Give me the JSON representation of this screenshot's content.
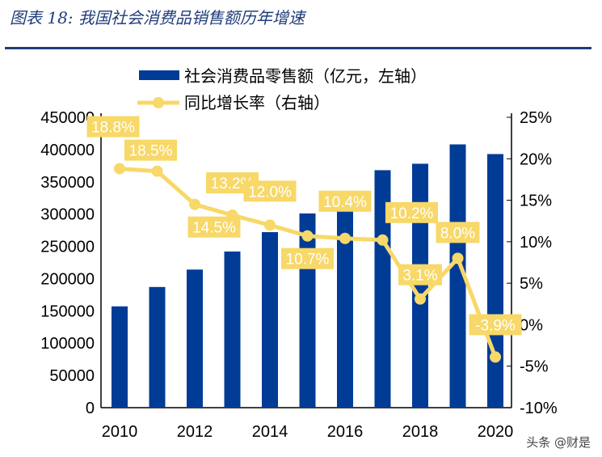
{
  "title": "图表 18:  我国社会消费品销售额历年增速",
  "watermark": "头条 @财是",
  "colors": {
    "bar": "#003C96",
    "line": "#F7D868",
    "label_bg": "#F7D868",
    "label_text": "#ffffff",
    "title": "#1f3d7a"
  },
  "chart_data": {
    "type": "bar+line",
    "categories": [
      2010,
      2011,
      2012,
      2013,
      2014,
      2015,
      2016,
      2017,
      2018,
      2019,
      2020
    ],
    "x_tick_labels": [
      "2010",
      "2012",
      "2014",
      "2016",
      "2018",
      "2020"
    ],
    "series": [
      {
        "name": "社会消费品零售额（亿元，左轴）",
        "type": "bar",
        "axis": "left",
        "values": [
          157000,
          187000,
          214000,
          242000,
          272000,
          301000,
          332000,
          368000,
          378000,
          408000,
          393000
        ]
      },
      {
        "name": "同比增长率（右轴）",
        "type": "line",
        "axis": "right",
        "values": [
          18.8,
          18.5,
          14.5,
          13.2,
          12.0,
          10.7,
          10.4,
          10.2,
          3.1,
          8.0,
          -3.9
        ],
        "data_labels": [
          "18.8%",
          "18.5%",
          "14.5%",
          "13.2%",
          "12.0%",
          "10.7%",
          "10.4%",
          "10.2%",
          "3.1%",
          "8.0%",
          "-3.9%"
        ]
      }
    ],
    "left_axis": {
      "range": [
        0,
        450000
      ],
      "ticks": [
        "0",
        "50000",
        "100000",
        "150000",
        "200000",
        "250000",
        "300000",
        "350000",
        "400000",
        "450000"
      ]
    },
    "right_axis": {
      "range": [
        -10,
        25
      ],
      "ticks": [
        "-10%",
        "-5%",
        "0%",
        "5%",
        "10%",
        "15%",
        "20%",
        "25%"
      ]
    },
    "legend": "top-center",
    "grid": false
  }
}
